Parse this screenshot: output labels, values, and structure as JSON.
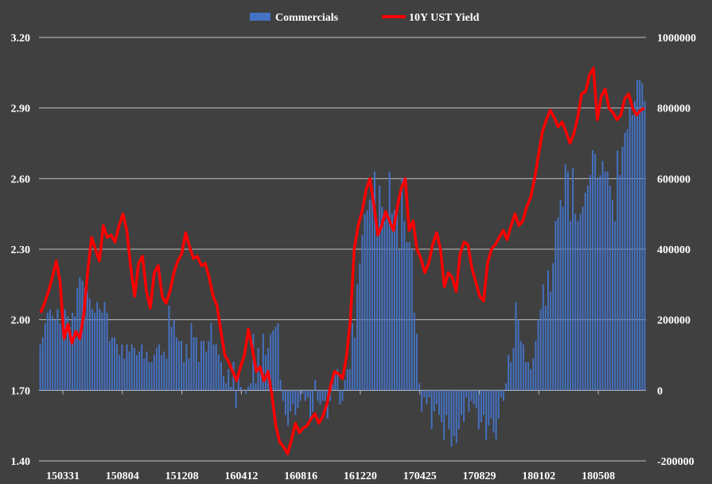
{
  "chart_data": {
    "type": "bar+line",
    "title": "",
    "legend": [
      {
        "name": "Commercials",
        "kind": "bar",
        "color": "#4472C4"
      },
      {
        "name": "10Y UST Yield",
        "kind": "line",
        "color": "#FF0000"
      }
    ],
    "legend_position": "top-center",
    "x_tick_labels": [
      "150331",
      "150804",
      "151208",
      "160412",
      "160816",
      "161220",
      "170425",
      "170829",
      "180102",
      "180508"
    ],
    "y_left": {
      "min": 1.4,
      "max": 3.2,
      "ticks": [
        "1.40",
        "1.70",
        "2.00",
        "2.30",
        "2.60",
        "2.90",
        "3.20"
      ]
    },
    "y_right": {
      "min": -200000,
      "max": 1000000,
      "ticks": [
        "-200000",
        "0",
        "200000",
        "400000",
        "600000",
        "800000",
        "1000000"
      ]
    },
    "gridlines": true,
    "series": [
      {
        "name": "Commercials",
        "axis": "right",
        "values": [
          130000,
          150000,
          190000,
          220000,
          230000,
          210000,
          200000,
          230000,
          190000,
          220000,
          230000,
          210000,
          180000,
          220000,
          210000,
          290000,
          320000,
          310000,
          290000,
          280000,
          260000,
          230000,
          220000,
          250000,
          230000,
          220000,
          250000,
          220000,
          140000,
          150000,
          150000,
          130000,
          100000,
          130000,
          90000,
          130000,
          110000,
          130000,
          120000,
          100000,
          110000,
          130000,
          90000,
          110000,
          80000,
          80000,
          100000,
          120000,
          130000,
          100000,
          110000,
          90000,
          240000,
          180000,
          200000,
          150000,
          140000,
          140000,
          80000,
          130000,
          90000,
          190000,
          150000,
          150000,
          80000,
          140000,
          140000,
          110000,
          140000,
          190000,
          130000,
          130000,
          100000,
          80000,
          40000,
          20000,
          60000,
          10000,
          80000,
          -50000,
          50000,
          10000,
          0,
          -10000,
          10000,
          20000,
          160000,
          20000,
          120000,
          60000,
          160000,
          100000,
          120000,
          160000,
          170000,
          180000,
          190000,
          30000,
          -30000,
          -70000,
          -100000,
          -60000,
          -40000,
          -70000,
          -50000,
          -30000,
          -10000,
          -30000,
          -20000,
          -80000,
          -60000,
          30000,
          -30000,
          -40000,
          -30000,
          -30000,
          -80000,
          -30000,
          20000,
          50000,
          60000,
          -40000,
          -30000,
          30000,
          60000,
          60000,
          190000,
          150000,
          300000,
          360000,
          440000,
          500000,
          510000,
          540000,
          560000,
          620000,
          460000,
          580000,
          520000,
          480000,
          500000,
          620000,
          500000,
          510000,
          520000,
          400000,
          600000,
          480000,
          420000,
          420000,
          400000,
          220000,
          160000,
          20000,
          -60000,
          -20000,
          -40000,
          -20000,
          -110000,
          -60000,
          -40000,
          -70000,
          -90000,
          -140000,
          -70000,
          -110000,
          -160000,
          -130000,
          -150000,
          -110000,
          -70000,
          -90000,
          -20000,
          -60000,
          -30000,
          -40000,
          -50000,
          -110000,
          -90000,
          -70000,
          -140000,
          -100000,
          -80000,
          -120000,
          -140000,
          -80000,
          -20000,
          -30000,
          20000,
          100000,
          80000,
          120000,
          250000,
          200000,
          140000,
          130000,
          80000,
          80000,
          60000,
          90000,
          140000,
          200000,
          230000,
          300000,
          240000,
          340000,
          280000,
          360000,
          480000,
          490000,
          540000,
          520000,
          640000,
          620000,
          480000,
          630000,
          500000,
          480000,
          500000,
          520000,
          560000,
          580000,
          610000,
          680000,
          670000,
          600000,
          610000,
          650000,
          620000,
          620000,
          580000,
          540000,
          480000,
          680000,
          610000,
          690000,
          730000,
          740000,
          800000,
          780000,
          820000,
          880000,
          880000,
          870000,
          820000
        ],
        "note": "weekly net positions, selection of visible bars"
      },
      {
        "name": "10Y UST Yield",
        "axis": "left",
        "values": [
          2.03,
          2.07,
          2.12,
          2.18,
          2.25,
          2.16,
          1.92,
          1.98,
          1.9,
          1.95,
          1.92,
          2.02,
          2.2,
          2.35,
          2.3,
          2.25,
          2.4,
          2.35,
          2.36,
          2.33,
          2.4,
          2.45,
          2.38,
          2.22,
          2.1,
          2.24,
          2.27,
          2.12,
          2.05,
          2.2,
          2.23,
          2.1,
          2.07,
          2.12,
          2.2,
          2.25,
          2.28,
          2.37,
          2.31,
          2.26,
          2.27,
          2.23,
          2.24,
          2.18,
          2.1,
          2.06,
          1.95,
          1.85,
          1.82,
          1.78,
          1.74,
          1.8,
          1.85,
          1.96,
          1.88,
          1.78,
          1.8,
          1.74,
          1.78,
          1.68,
          1.55,
          1.48,
          1.46,
          1.43,
          1.49,
          1.56,
          1.52,
          1.54,
          1.55,
          1.58,
          1.6,
          1.56,
          1.59,
          1.64,
          1.72,
          1.78,
          1.77,
          1.75,
          1.84,
          2.0,
          2.3,
          2.4,
          2.46,
          2.55,
          2.6,
          2.49,
          2.36,
          2.4,
          2.46,
          2.42,
          2.38,
          2.48,
          2.56,
          2.6,
          2.38,
          2.42,
          2.3,
          2.26,
          2.2,
          2.24,
          2.32,
          2.37,
          2.3,
          2.14,
          2.2,
          2.18,
          2.12,
          2.28,
          2.33,
          2.32,
          2.22,
          2.16,
          2.1,
          2.08,
          2.24,
          2.3,
          2.32,
          2.35,
          2.38,
          2.34,
          2.4,
          2.45,
          2.4,
          2.42,
          2.48,
          2.52,
          2.6,
          2.7,
          2.8,
          2.85,
          2.89,
          2.86,
          2.82,
          2.84,
          2.8,
          2.75,
          2.79,
          2.86,
          2.96,
          2.97,
          3.04,
          3.07,
          2.85,
          2.95,
          2.98,
          2.9,
          2.88,
          2.85,
          2.87,
          2.94,
          2.96,
          2.9,
          2.87,
          2.89,
          2.9
        ]
      }
    ]
  }
}
